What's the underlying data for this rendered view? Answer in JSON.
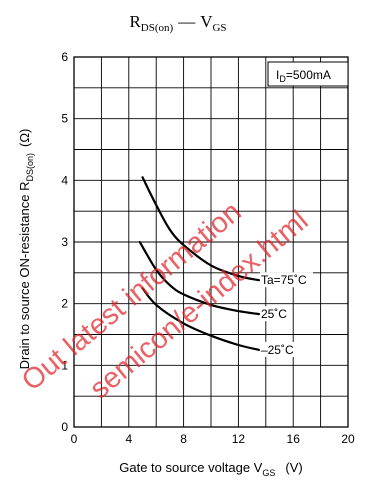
{
  "chart_data": {
    "type": "line",
    "title": {
      "main": "R",
      "sub": "DS(on)",
      "dash": "—",
      "main2": "V",
      "sub2": "GS"
    },
    "xlabel": {
      "text": "Gate to source voltage  V",
      "sub": "GS",
      "unit": "(V)"
    },
    "ylabel": {
      "text": "Drain to source ON-resistance  R",
      "sub": "DS(on)",
      "unit": "(Ω)"
    },
    "xlim": [
      0,
      20
    ],
    "ylim": [
      0,
      6
    ],
    "xticks": [
      "0",
      "4",
      "8",
      "12",
      "16",
      "20"
    ],
    "yticks": [
      "0",
      "1",
      "2",
      "3",
      "4",
      "5",
      "6"
    ],
    "grid": true,
    "condition": {
      "text": "I",
      "sub": "D",
      "rest": "=500mA"
    },
    "series": [
      {
        "name": "Ta=75˚C",
        "points": [
          [
            5,
            4.05
          ],
          [
            6,
            3.6
          ],
          [
            7,
            3.2
          ],
          [
            8,
            2.95
          ],
          [
            10,
            2.62
          ],
          [
            12,
            2.45
          ],
          [
            13.5,
            2.38
          ]
        ]
      },
      {
        "name": "25˚C",
        "points": [
          [
            4.8,
            3.0
          ],
          [
            6,
            2.55
          ],
          [
            7,
            2.3
          ],
          [
            8,
            2.15
          ],
          [
            10,
            1.98
          ],
          [
            12,
            1.88
          ],
          [
            13.5,
            1.83
          ]
        ]
      },
      {
        "name": "–25˚C",
        "points": [
          [
            5,
            2.25
          ],
          [
            6,
            1.98
          ],
          [
            8,
            1.68
          ],
          [
            10,
            1.48
          ],
          [
            12,
            1.33
          ],
          [
            13.5,
            1.25
          ]
        ]
      }
    ]
  },
  "watermark": [
    "Out latest information",
    "semicon/e-index.html"
  ]
}
